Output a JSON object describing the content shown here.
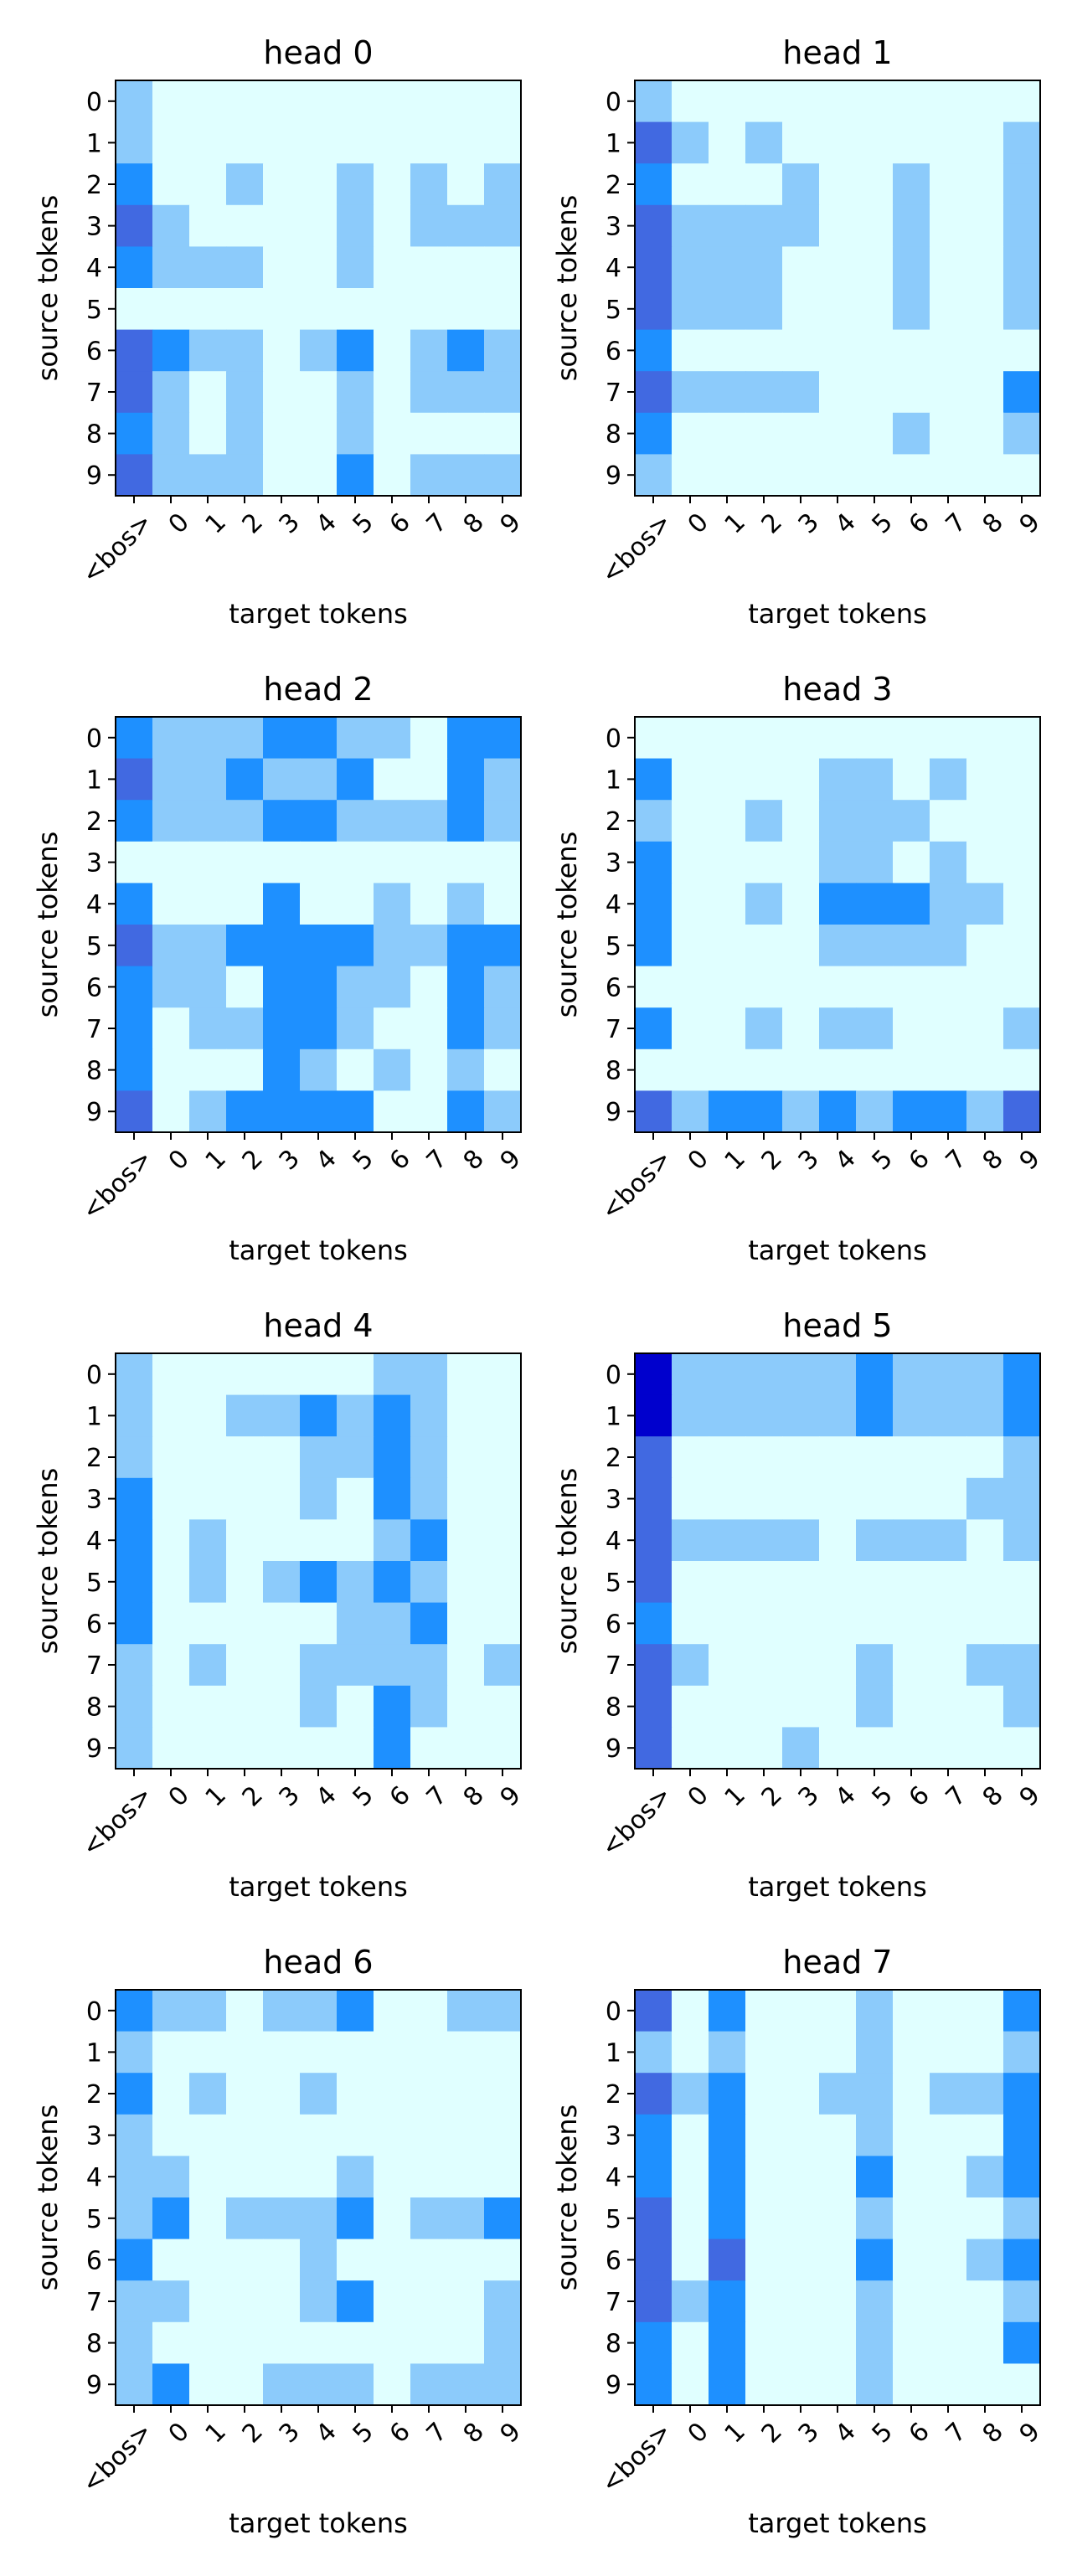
{
  "chart_data": {
    "type": "heatmap",
    "x_tick_labels": [
      "<bos>",
      "0",
      "1",
      "2",
      "3",
      "4",
      "5",
      "6",
      "7",
      "8",
      "9"
    ],
    "y_tick_labels": [
      "0",
      "1",
      "2",
      "3",
      "4",
      "5",
      "6",
      "7",
      "8",
      "9"
    ],
    "xlabel": "target tokens",
    "ylabel": "source tokens",
    "levels": [
      "#e0ffff",
      "#8ccbfb",
      "#1e90ff",
      "#4169e1",
      "#0000cd"
    ],
    "value_scale": "0 = lightest, 4 = darkest",
    "heads": [
      {
        "title": "head 0",
        "matrix": [
          [
            1,
            0,
            0,
            0,
            0,
            0,
            0,
            0,
            0,
            0,
            0
          ],
          [
            1,
            0,
            0,
            0,
            0,
            0,
            0,
            0,
            0,
            0,
            0
          ],
          [
            2,
            0,
            0,
            1,
            0,
            0,
            1,
            0,
            1,
            0,
            1
          ],
          [
            3,
            1,
            0,
            0,
            0,
            0,
            1,
            0,
            1,
            1,
            1
          ],
          [
            2,
            1,
            1,
            1,
            0,
            0,
            1,
            0,
            0,
            0,
            0
          ],
          [
            0,
            0,
            0,
            0,
            0,
            0,
            0,
            0,
            0,
            0,
            0
          ],
          [
            3,
            2,
            1,
            1,
            0,
            1,
            2,
            0,
            1,
            2,
            1
          ],
          [
            3,
            1,
            0,
            1,
            0,
            0,
            1,
            0,
            1,
            1,
            1
          ],
          [
            2,
            1,
            0,
            1,
            0,
            0,
            1,
            0,
            0,
            0,
            0
          ],
          [
            3,
            1,
            1,
            1,
            0,
            0,
            2,
            0,
            1,
            1,
            1
          ]
        ]
      },
      {
        "title": "head 1",
        "matrix": [
          [
            1,
            0,
            0,
            0,
            0,
            0,
            0,
            0,
            0,
            0,
            0
          ],
          [
            3,
            1,
            0,
            1,
            0,
            0,
            0,
            0,
            0,
            0,
            1
          ],
          [
            2,
            0,
            0,
            0,
            1,
            0,
            0,
            1,
            0,
            0,
            1
          ],
          [
            3,
            1,
            1,
            1,
            1,
            0,
            0,
            1,
            0,
            0,
            1
          ],
          [
            3,
            1,
            1,
            1,
            0,
            0,
            0,
            1,
            0,
            0,
            1
          ],
          [
            3,
            1,
            1,
            1,
            0,
            0,
            0,
            1,
            0,
            0,
            1
          ],
          [
            2,
            0,
            0,
            0,
            0,
            0,
            0,
            0,
            0,
            0,
            0
          ],
          [
            3,
            1,
            1,
            1,
            1,
            0,
            0,
            0,
            0,
            0,
            2
          ],
          [
            2,
            0,
            0,
            0,
            0,
            0,
            0,
            1,
            0,
            0,
            1
          ],
          [
            1,
            0,
            0,
            0,
            0,
            0,
            0,
            0,
            0,
            0,
            0
          ]
        ]
      },
      {
        "title": "head 2",
        "matrix": [
          [
            2,
            1,
            1,
            1,
            2,
            2,
            1,
            1,
            0,
            2,
            2
          ],
          [
            3,
            1,
            1,
            2,
            1,
            1,
            2,
            0,
            0,
            2,
            1
          ],
          [
            2,
            1,
            1,
            1,
            2,
            2,
            1,
            1,
            1,
            2,
            1
          ],
          [
            0,
            0,
            0,
            0,
            0,
            0,
            0,
            0,
            0,
            0,
            0
          ],
          [
            2,
            0,
            0,
            0,
            2,
            0,
            0,
            1,
            0,
            1,
            0
          ],
          [
            3,
            1,
            1,
            2,
            2,
            2,
            2,
            1,
            1,
            2,
            2
          ],
          [
            2,
            1,
            1,
            0,
            2,
            2,
            1,
            1,
            0,
            2,
            1
          ],
          [
            2,
            0,
            1,
            1,
            2,
            2,
            1,
            0,
            0,
            2,
            1
          ],
          [
            2,
            0,
            0,
            0,
            2,
            1,
            0,
            1,
            0,
            1,
            0
          ],
          [
            3,
            0,
            1,
            2,
            2,
            2,
            2,
            0,
            0,
            2,
            1
          ]
        ]
      },
      {
        "title": "head 3",
        "matrix": [
          [
            0,
            0,
            0,
            0,
            0,
            0,
            0,
            0,
            0,
            0,
            0
          ],
          [
            2,
            0,
            0,
            0,
            0,
            1,
            1,
            0,
            1,
            0,
            0
          ],
          [
            1,
            0,
            0,
            1,
            0,
            1,
            1,
            1,
            0,
            0,
            0
          ],
          [
            2,
            0,
            0,
            0,
            0,
            1,
            1,
            0,
            1,
            0,
            0
          ],
          [
            2,
            0,
            0,
            1,
            0,
            2,
            2,
            2,
            1,
            1,
            0
          ],
          [
            2,
            0,
            0,
            0,
            0,
            1,
            1,
            1,
            1,
            0,
            0
          ],
          [
            0,
            0,
            0,
            0,
            0,
            0,
            0,
            0,
            0,
            0,
            0
          ],
          [
            2,
            0,
            0,
            1,
            0,
            1,
            1,
            0,
            0,
            0,
            1
          ],
          [
            0,
            0,
            0,
            0,
            0,
            0,
            0,
            0,
            0,
            0,
            0
          ],
          [
            3,
            1,
            2,
            2,
            1,
            2,
            1,
            2,
            2,
            1,
            3
          ]
        ]
      },
      {
        "title": "head 4",
        "matrix": [
          [
            1,
            0,
            0,
            0,
            0,
            0,
            0,
            1,
            1,
            0,
            0
          ],
          [
            1,
            0,
            0,
            1,
            1,
            2,
            1,
            2,
            1,
            0,
            0
          ],
          [
            1,
            0,
            0,
            0,
            0,
            1,
            1,
            2,
            1,
            0,
            0
          ],
          [
            2,
            0,
            0,
            0,
            0,
            1,
            0,
            2,
            1,
            0,
            0
          ],
          [
            2,
            0,
            1,
            0,
            0,
            0,
            0,
            1,
            2,
            0,
            0
          ],
          [
            2,
            0,
            1,
            0,
            1,
            2,
            1,
            2,
            1,
            0,
            0
          ],
          [
            2,
            0,
            0,
            0,
            0,
            0,
            1,
            1,
            2,
            0,
            0
          ],
          [
            1,
            0,
            1,
            0,
            0,
            1,
            1,
            1,
            1,
            0,
            1
          ],
          [
            1,
            0,
            0,
            0,
            0,
            1,
            0,
            2,
            1,
            0,
            0
          ],
          [
            1,
            0,
            0,
            0,
            0,
            0,
            0,
            2,
            0,
            0,
            0
          ]
        ]
      },
      {
        "title": "head 5",
        "matrix": [
          [
            4,
            1,
            1,
            1,
            1,
            1,
            2,
            1,
            1,
            1,
            2
          ],
          [
            4,
            1,
            1,
            1,
            1,
            1,
            2,
            1,
            1,
            1,
            2
          ],
          [
            3,
            0,
            0,
            0,
            0,
            0,
            0,
            0,
            0,
            0,
            1
          ],
          [
            3,
            0,
            0,
            0,
            0,
            0,
            0,
            0,
            0,
            1,
            1
          ],
          [
            3,
            1,
            1,
            1,
            1,
            0,
            1,
            1,
            1,
            0,
            1
          ],
          [
            3,
            0,
            0,
            0,
            0,
            0,
            0,
            0,
            0,
            0,
            0
          ],
          [
            2,
            0,
            0,
            0,
            0,
            0,
            0,
            0,
            0,
            0,
            0
          ],
          [
            3,
            1,
            0,
            0,
            0,
            0,
            1,
            0,
            0,
            1,
            1
          ],
          [
            3,
            0,
            0,
            0,
            0,
            0,
            1,
            0,
            0,
            0,
            1
          ],
          [
            3,
            0,
            0,
            0,
            1,
            0,
            0,
            0,
            0,
            0,
            0
          ]
        ]
      },
      {
        "title": "head 6",
        "matrix": [
          [
            2,
            1,
            1,
            0,
            1,
            1,
            2,
            0,
            0,
            1,
            1
          ],
          [
            1,
            0,
            0,
            0,
            0,
            0,
            0,
            0,
            0,
            0,
            0
          ],
          [
            2,
            0,
            1,
            0,
            0,
            1,
            0,
            0,
            0,
            0,
            0
          ],
          [
            1,
            0,
            0,
            0,
            0,
            0,
            0,
            0,
            0,
            0,
            0
          ],
          [
            1,
            1,
            0,
            0,
            0,
            0,
            1,
            0,
            0,
            0,
            0
          ],
          [
            1,
            2,
            0,
            1,
            1,
            1,
            2,
            0,
            1,
            1,
            2
          ],
          [
            2,
            0,
            0,
            0,
            0,
            1,
            0,
            0,
            0,
            0,
            0
          ],
          [
            1,
            1,
            0,
            0,
            0,
            1,
            2,
            0,
            0,
            0,
            1
          ],
          [
            1,
            0,
            0,
            0,
            0,
            0,
            0,
            0,
            0,
            0,
            1
          ],
          [
            1,
            2,
            0,
            0,
            1,
            1,
            1,
            0,
            1,
            1,
            1
          ]
        ]
      },
      {
        "title": "head 7",
        "matrix": [
          [
            3,
            0,
            2,
            0,
            0,
            0,
            1,
            0,
            0,
            0,
            2
          ],
          [
            1,
            0,
            1,
            0,
            0,
            0,
            1,
            0,
            0,
            0,
            1
          ],
          [
            3,
            1,
            2,
            0,
            0,
            1,
            1,
            0,
            1,
            1,
            2
          ],
          [
            2,
            0,
            2,
            0,
            0,
            0,
            1,
            0,
            0,
            0,
            2
          ],
          [
            2,
            0,
            2,
            0,
            0,
            0,
            2,
            0,
            0,
            1,
            2
          ],
          [
            3,
            0,
            2,
            0,
            0,
            0,
            1,
            0,
            0,
            0,
            1
          ],
          [
            3,
            0,
            3,
            0,
            0,
            0,
            2,
            0,
            0,
            1,
            2
          ],
          [
            3,
            1,
            2,
            0,
            0,
            0,
            1,
            0,
            0,
            0,
            1
          ],
          [
            2,
            0,
            2,
            0,
            0,
            0,
            1,
            0,
            0,
            0,
            2
          ],
          [
            2,
            0,
            2,
            0,
            0,
            0,
            1,
            0,
            0,
            0,
            0
          ]
        ]
      }
    ]
  }
}
